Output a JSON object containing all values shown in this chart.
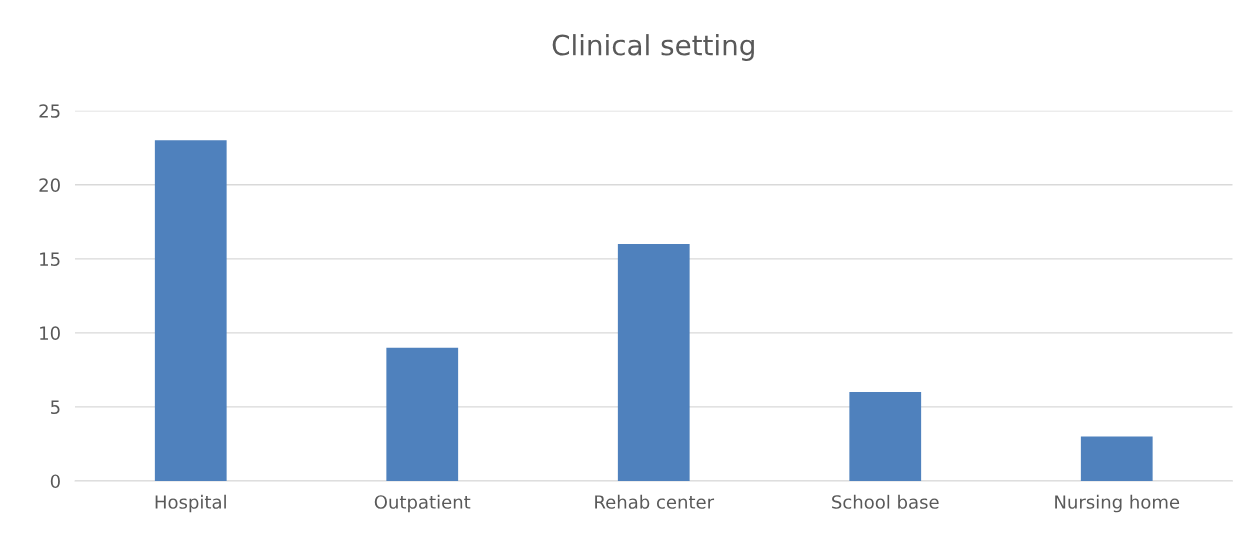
{
  "chart_data": {
    "type": "bar",
    "title": "Clinical setting",
    "categories": [
      "Hospital",
      "Outpatient",
      "Rehab center",
      "School base",
      "Nursing home"
    ],
    "values": [
      23,
      9,
      16,
      6,
      3
    ],
    "color": "#4f81bd",
    "ylim": [
      0,
      25
    ],
    "yticks": [
      0,
      5,
      10,
      15,
      20,
      25
    ],
    "grid": "y",
    "legend": false
  }
}
